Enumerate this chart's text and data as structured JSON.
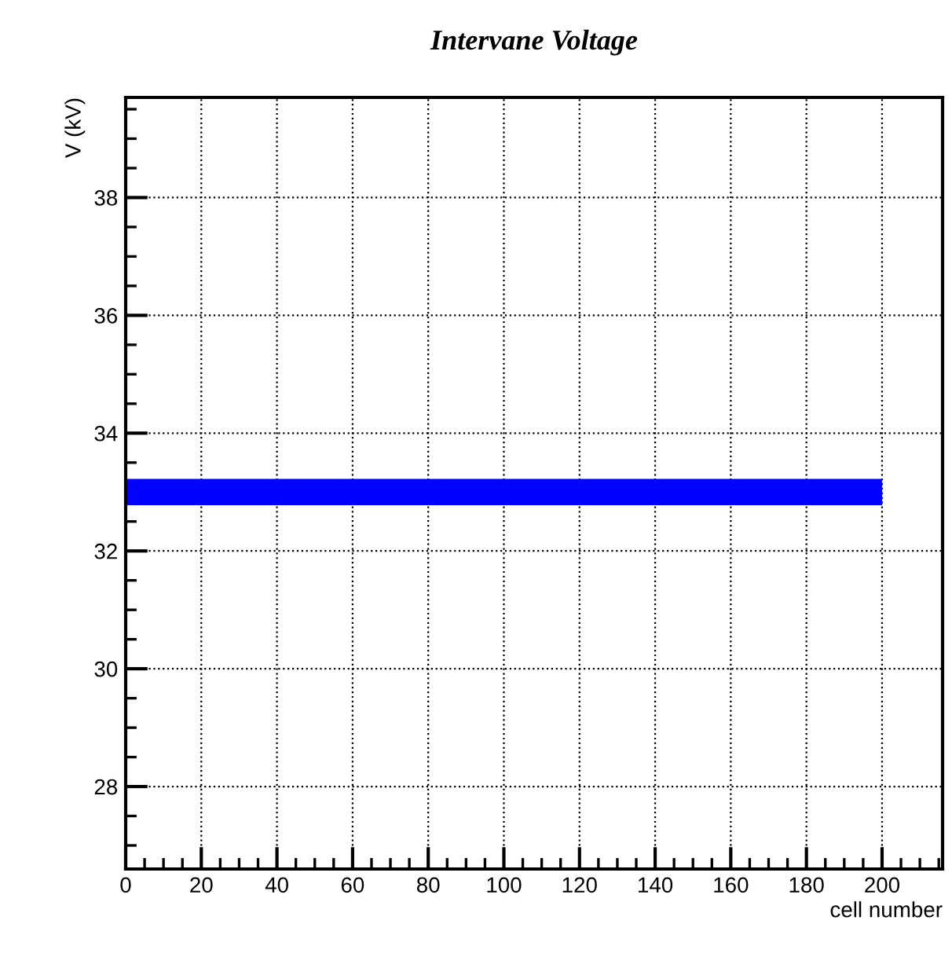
{
  "chart_data": {
    "type": "line",
    "title": "Intervane Voltage",
    "xlabel": "cell number",
    "ylabel": "V (kV)",
    "x": [
      0,
      200
    ],
    "series": [
      {
        "color": "#0000ff",
        "values": [
          33,
          33
        ]
      }
    ],
    "xlim": [
      0,
      216
    ],
    "xticks": [
      0,
      20,
      40,
      60,
      80,
      100,
      120,
      140,
      160,
      180,
      200
    ],
    "ylim": [
      26.6,
      39.7
    ],
    "yticks": [
      28,
      30,
      32,
      34,
      36,
      38
    ],
    "grid": true,
    "marker": "none",
    "line_style": "solid"
  }
}
